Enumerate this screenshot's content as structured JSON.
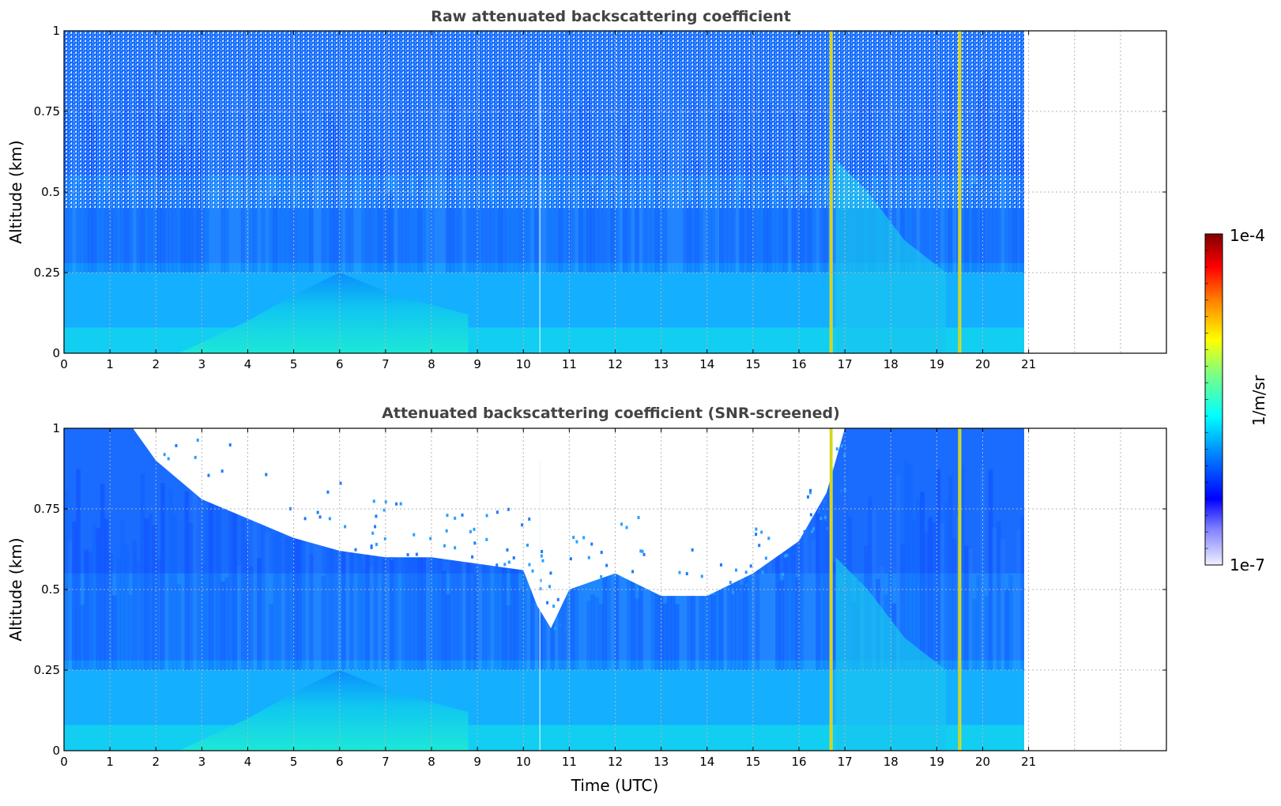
{
  "chart_data": [
    {
      "type": "heatmap",
      "title": "Raw attenuated backscattering coefficient",
      "xlabel": "",
      "ylabel": "Altitude (km)",
      "xlim": [
        0,
        24
      ],
      "ylim": [
        0,
        1
      ],
      "x_ticks": [
        0,
        1,
        2,
        3,
        4,
        5,
        6,
        7,
        8,
        9,
        10,
        11,
        12,
        13,
        14,
        15,
        16,
        17,
        18,
        19,
        20,
        21
      ],
      "y_ticks": [
        "0",
        "0.25",
        "0.5",
        "0.75",
        "1"
      ],
      "data_extent_x": [
        0,
        21
      ],
      "grid": true,
      "colormap": "jet",
      "color_scale": "log",
      "features": [
        {
          "kind": "surface aerosol layer",
          "time_start": 2.5,
          "time_end": 8.8,
          "altitude_top_km": 0.25
        },
        {
          "kind": "vertical bright streak",
          "time": 16.7
        },
        {
          "kind": "vertical bright streak",
          "time": 19.5
        }
      ]
    },
    {
      "type": "heatmap",
      "title": "Attenuated backscattering coefficient (SNR-screened)",
      "xlabel": "Time (UTC)",
      "ylabel": "Altitude (km)",
      "xlim": [
        0,
        24
      ],
      "ylim": [
        0,
        1
      ],
      "x_ticks": [
        0,
        1,
        2,
        3,
        4,
        5,
        6,
        7,
        8,
        9,
        10,
        11,
        12,
        13,
        14,
        15,
        16,
        17,
        18,
        19,
        20,
        21
      ],
      "y_ticks": [
        "0",
        "0.25",
        "0.5",
        "0.75",
        "1"
      ],
      "data_extent_x": [
        0,
        21
      ],
      "grid": true,
      "colormap": "jet",
      "color_scale": "log",
      "screened_region_boundary": {
        "time": [
          0,
          1.5,
          2,
          3,
          4,
          5,
          6,
          7,
          8,
          9,
          10,
          10.3,
          10.6,
          11,
          12,
          13,
          14,
          15,
          16,
          16.6,
          17,
          19.3,
          21
        ],
        "altitude_km": [
          1.0,
          1.0,
          0.9,
          0.78,
          0.72,
          0.66,
          0.62,
          0.6,
          0.6,
          0.58,
          0.56,
          0.45,
          0.38,
          0.5,
          0.55,
          0.48,
          0.48,
          0.55,
          0.65,
          0.8,
          1.0,
          1.0,
          1.0
        ]
      }
    }
  ],
  "colorbar": {
    "label": "1/m/sr",
    "max_label": "1e-4",
    "min_label": "1e-7",
    "colors": [
      "#f0f0ff",
      "#7f7fff",
      "#0000ff",
      "#0080ff",
      "#00ffff",
      "#80ff80",
      "#ffff00",
      "#ff8000",
      "#ff0000",
      "#800000"
    ]
  }
}
